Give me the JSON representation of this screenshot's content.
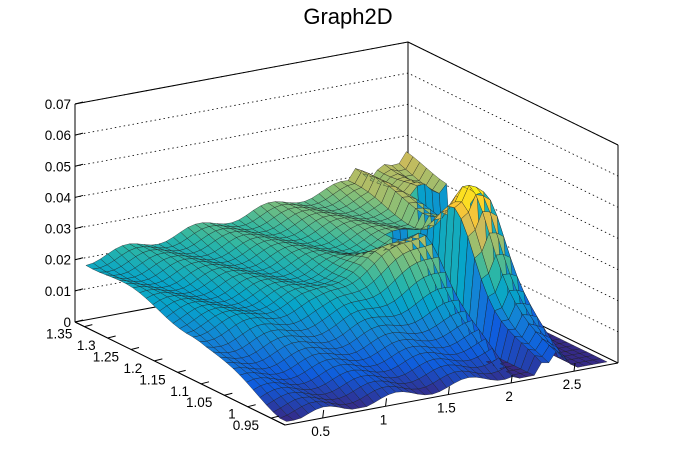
{
  "chart_data": {
    "type": "surface",
    "title": "Graph2D",
    "xlabel": "",
    "ylabel": "",
    "zlabel": "",
    "xlim": [
      0.2,
      2.85
    ],
    "ylim": [
      0.92,
      1.37
    ],
    "zlim": [
      0,
      0.07
    ],
    "x_ticks": [
      "0.5",
      "1",
      "1.5",
      "2",
      "2.5"
    ],
    "y_ticks": [
      "0.95",
      "1",
      "1.05",
      "1.1",
      "1.15",
      "1.2",
      "1.25",
      "1.3",
      "1.35"
    ],
    "z_ticks": [
      "0",
      "0.01",
      "0.02",
      "0.03",
      "0.04",
      "0.05",
      "0.06",
      "0.07"
    ],
    "x_tick_values": [
      0.5,
      1,
      1.5,
      2,
      2.5
    ],
    "y_tick_values": [
      0.95,
      1.0,
      1.05,
      1.1,
      1.15,
      1.2,
      1.25,
      1.3,
      1.35
    ],
    "z_tick_values": [
      0,
      0.01,
      0.02,
      0.03,
      0.04,
      0.05,
      0.06,
      0.07
    ],
    "grid": true,
    "palette": [
      "#352a87",
      "#0f5cdd",
      "#1481d6",
      "#06a4ca",
      "#2eb7a4",
      "#87bf77",
      "#d1bb59",
      "#fec832",
      "#f9fb0e"
    ],
    "surface_description_values": {
      "x_range": [
        0.25,
        2.8
      ],
      "y_range": [
        0.93,
        1.36
      ],
      "z_max": 0.044,
      "z_at_low_x_high_y": 0.018
    }
  }
}
